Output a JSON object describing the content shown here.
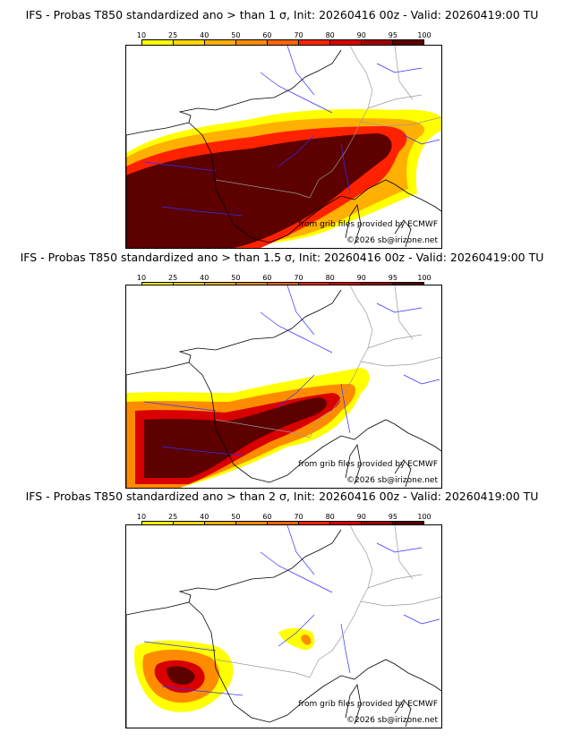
{
  "colorbar": {
    "ticks": [
      "10",
      "25",
      "40",
      "50",
      "60",
      "70",
      "80",
      "90",
      "95",
      "100"
    ],
    "colors": [
      "#ffff00",
      "#ffd700",
      "#ffb000",
      "#ff8c00",
      "#ff6400",
      "#ff2200",
      "#d80000",
      "#a00000",
      "#5c0000"
    ]
  },
  "panels": [
    {
      "title": "IFS - Probas T850  standardized ano > than 1 σ, Init: 20260416 00z - Valid: 20260419:00 TU",
      "threshold": 1
    },
    {
      "title": "IFS - Probas T850  standardized ano > than 1.5 σ, Init: 20260416 00z - Valid: 20260419:00 TU",
      "threshold": 1.5
    },
    {
      "title": "IFS - Probas T850  standardized ano > than 2 σ, Init: 20260416 00z - Valid: 20260419:00 TU",
      "threshold": 2
    }
  ],
  "credits": {
    "source": "from grib files provided by ECMWF",
    "copyright": "©2026 sb@irizone.net"
  }
}
